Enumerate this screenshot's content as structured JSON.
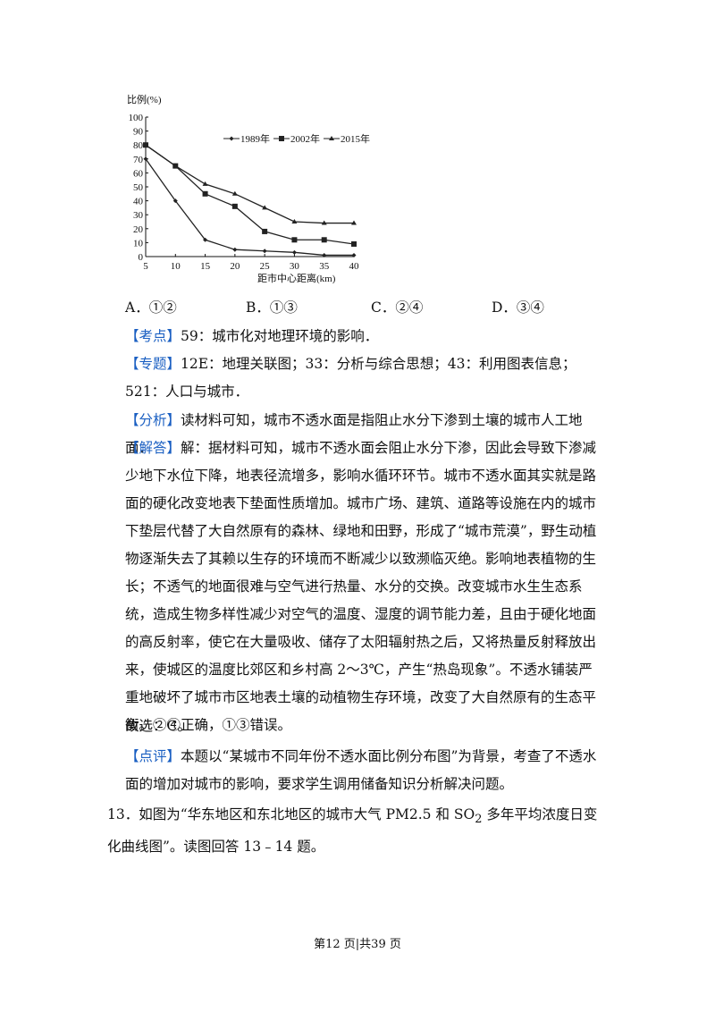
{
  "chart_data": {
    "type": "line",
    "y_label": "比例(%)",
    "x_label": "距市中心距离(km)",
    "x": [
      5,
      10,
      15,
      20,
      25,
      30,
      35,
      40
    ],
    "xlim": [
      5,
      40
    ],
    "xticks": [
      5,
      10,
      15,
      20,
      25,
      30,
      35,
      40
    ],
    "ylim": [
      0,
      100
    ],
    "yticks": [
      0,
      10,
      20,
      30,
      40,
      50,
      60,
      70,
      80,
      90,
      100
    ],
    "series": [
      {
        "name": "1989年",
        "color": "#222222",
        "marker": "diamond",
        "values": [
          70,
          40,
          12,
          5,
          4,
          3,
          1,
          1
        ]
      },
      {
        "name": "2002年",
        "color": "#222222",
        "marker": "square",
        "values": [
          80,
          65,
          45,
          36,
          18,
          12,
          12,
          9
        ]
      },
      {
        "name": "2015年",
        "color": "#222222",
        "marker": "triangle",
        "values": [
          80,
          65,
          52,
          45,
          35,
          25,
          24,
          24
        ]
      }
    ]
  },
  "options": [
    "A．①②",
    "B．①③",
    "C．②④",
    "D．③④"
  ],
  "sections": [
    {
      "label": "【考点】",
      "text": "59：城市化对地理环境的影响．"
    },
    {
      "label": "【专题】",
      "text": "12E：地理关联图；33：分析与综合思想；43：利用图表信息；521：人口与城市．"
    },
    {
      "label": "【分析】",
      "text": "读材料可知，城市不透水面是指阻止水分下渗到土壤的城市人工地面．"
    },
    {
      "label": "【解答】",
      "text": "解：据材料可知，城市不透水面会阻止水分下渗，因此会导致下渗减少地下水位下降，地表径流增多，影响水循环环节。城市不透水面其实就是路面的硬化改变地表下垫面性质增加。城市广场、建筑、道路等设施在内的城市下垫层代替了大自然原有的森林、绿地和田野，形成了“城市荒漠”，野生动植物逐渐失去了其赖以生存的环境而不断减少以致濒临灭绝。影响地表植物的生长；不透气的地面很难与空气进行热量、水分的交换。改变城市水生生态系统，造成生物多样性减少对空气的温度、湿度的调节能力差，且由于硬化地面的高反射率，使它在大量吸收、储存了太阳辐射热之后，又将热量反射释放出来，使城区的温度比郊区和乡村高 2～3℃，产生“热岛现象”。不透水铺装严重地破坏了城市市区地表土壤的动植物生存环境，改变了大自然原有的生态平衡。②④正确，①③错误。"
    },
    {
      "text": "故选：C。"
    },
    {
      "label": "【点评】",
      "text": "本题以“某城市不同年份不透水面比例分布图”为背景，考查了不透水面的增加对城市的影响，要求学生调用储备知识分析解决问题。"
    }
  ],
  "question": {
    "before": "13．如图为“华东地区和东北地区的城市大气 PM2.5 和 SO",
    "sub": "2",
    "after": " 多年平均浓度日变化曲线图”。读图回答 13﹣14 题。"
  },
  "footer": "第12 页|共39 页"
}
